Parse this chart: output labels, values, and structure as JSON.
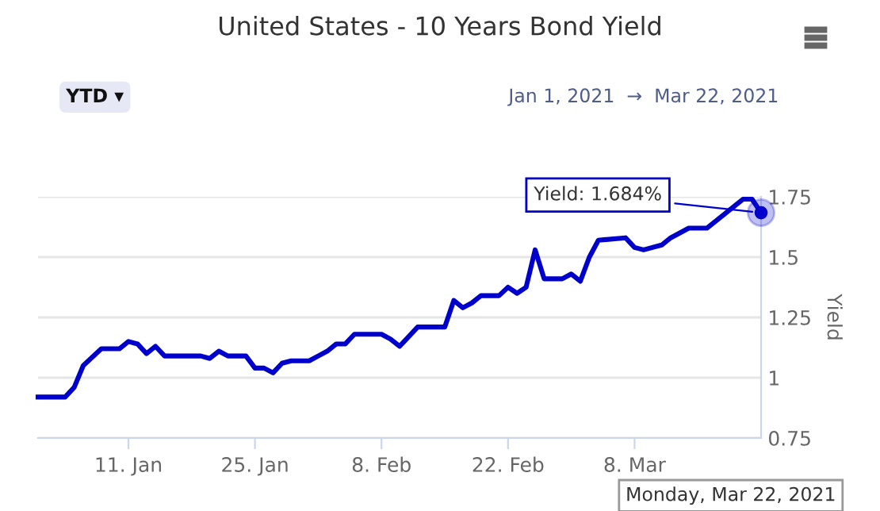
{
  "chart_data": {
    "type": "line",
    "title": "United States - 10 Years Bond Yield",
    "ylabel": "Yield",
    "annotations": [
      "YTD ▾",
      "Jan 1, 2021  →  Mar 22, 2021",
      {
        "text": "Yield: 1.684%",
        "x": "2021-03-22",
        "y": 1.684
      },
      "Monday, Mar 22, 2021"
    ],
    "x": [
      "2021-01-01",
      "2021-01-04",
      "2021-01-05",
      "2021-01-06",
      "2021-01-08",
      "2021-01-10",
      "2021-01-11",
      "2021-01-12",
      "2021-01-13",
      "2021-01-14",
      "2021-01-15",
      "2021-01-19",
      "2021-01-20",
      "2021-01-21",
      "2021-01-22",
      "2021-01-24",
      "2021-01-25",
      "2021-01-26",
      "2021-01-27",
      "2021-01-28",
      "2021-01-29",
      "2021-01-31",
      "2021-02-01",
      "2021-02-02",
      "2021-02-03",
      "2021-02-04",
      "2021-02-05",
      "2021-02-08",
      "2021-02-09",
      "2021-02-10",
      "2021-02-11",
      "2021-02-12",
      "2021-02-15",
      "2021-02-16",
      "2021-02-17",
      "2021-02-18",
      "2021-02-19",
      "2021-02-21",
      "2021-02-22",
      "2021-02-23",
      "2021-02-24",
      "2021-02-25",
      "2021-02-26",
      "2021-02-28",
      "2021-03-01",
      "2021-03-02",
      "2021-03-03",
      "2021-03-04",
      "2021-03-07",
      "2021-03-08",
      "2021-03-09",
      "2021-03-11",
      "2021-03-12",
      "2021-03-14",
      "2021-03-16",
      "2021-03-18",
      "2021-03-20",
      "2021-03-21",
      "2021-03-22"
    ],
    "series": [
      {
        "color": "#0000cc",
        "values": [
          0.92,
          0.92,
          0.96,
          1.05,
          1.12,
          1.12,
          1.15,
          1.14,
          1.1,
          1.13,
          1.09,
          1.09,
          1.08,
          1.11,
          1.09,
          1.09,
          1.04,
          1.04,
          1.02,
          1.06,
          1.07,
          1.07,
          1.09,
          1.11,
          1.14,
          1.14,
          1.18,
          1.18,
          1.16,
          1.13,
          1.17,
          1.21,
          1.21,
          1.32,
          1.29,
          1.31,
          1.34,
          1.34,
          1.375,
          1.35,
          1.375,
          1.53,
          1.41,
          1.41,
          1.43,
          1.4,
          1.5,
          1.57,
          1.58,
          1.54,
          1.53,
          1.55,
          1.58,
          1.62,
          1.62,
          1.68,
          1.74,
          1.74,
          1.684
        ]
      }
    ],
    "xlim": [
      "2021-01-01",
      "2021-03-22"
    ],
    "xticks": [
      {
        "value": "2021-01-11",
        "label": "11. Jan"
      },
      {
        "value": "2021-01-25",
        "label": "25. Jan"
      },
      {
        "value": "2021-02-08",
        "label": "8. Feb"
      },
      {
        "value": "2021-02-22",
        "label": "22. Feb"
      },
      {
        "value": "2021-03-08",
        "label": "8. Mar"
      }
    ],
    "ylim": [
      0.75,
      1.75
    ],
    "yticks": [
      0.75,
      1,
      1.25,
      1.5,
      1.75
    ],
    "grid": "y",
    "marker": "none",
    "line_style": "solid"
  }
}
